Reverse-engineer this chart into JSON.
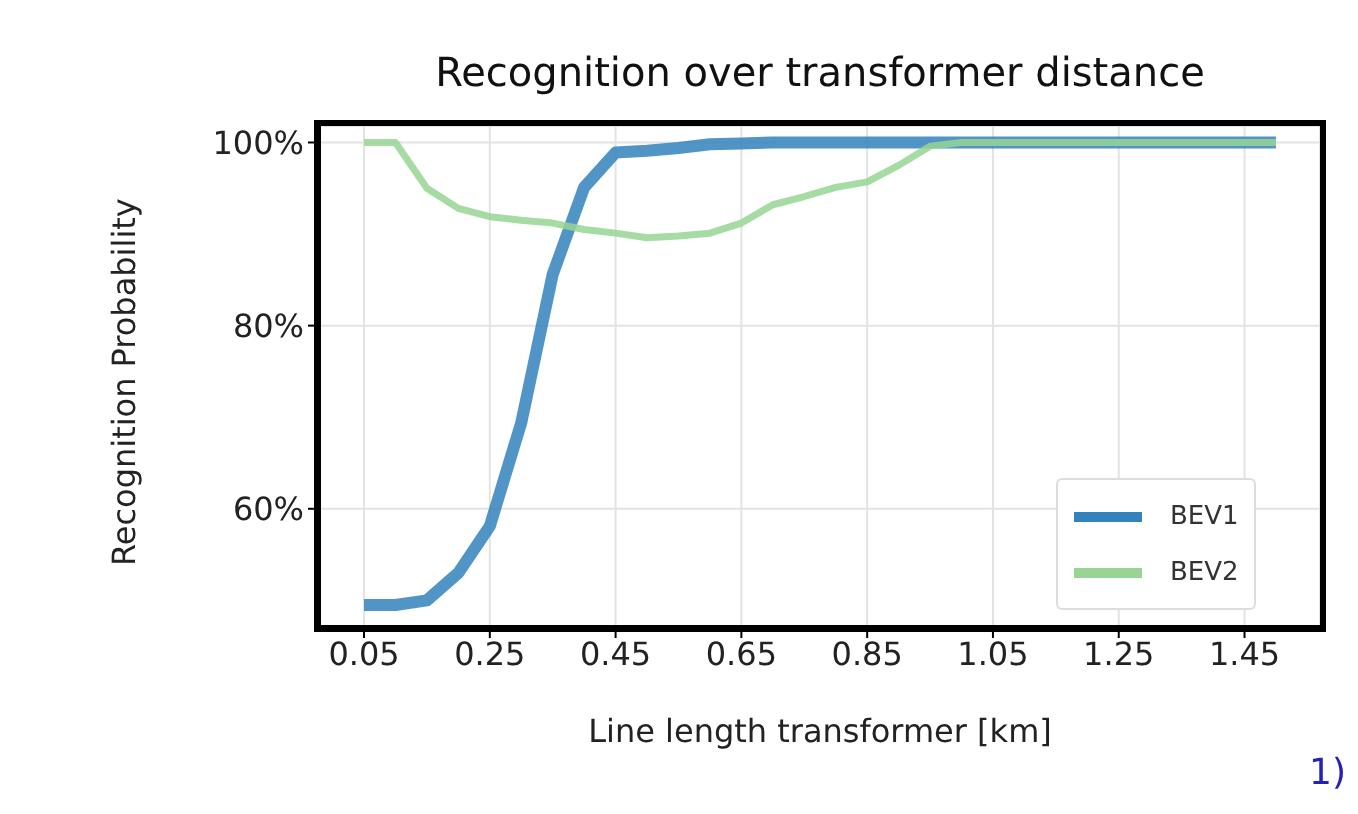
{
  "chart_data": {
    "type": "line",
    "title": "Recognition over transformer distance",
    "xlabel": "Line length transformer [km]",
    "ylabel": "Recognition Probability",
    "x": [
      0.05,
      0.1,
      0.15,
      0.2,
      0.25,
      0.3,
      0.35,
      0.4,
      0.45,
      0.5,
      0.55,
      0.6,
      0.65,
      0.7,
      0.75,
      0.8,
      0.85,
      0.9,
      0.95,
      1.0,
      1.05,
      1.1,
      1.15,
      1.2,
      1.25,
      1.3,
      1.35,
      1.4,
      1.45,
      1.5
    ],
    "series": [
      {
        "name": "BEV1",
        "color": "#3282bd",
        "values": [
          49.5,
          49.5,
          50.0,
          53.0,
          58.1,
          69.4,
          85.6,
          95.1,
          98.9,
          99.1,
          99.4,
          99.8,
          99.9,
          100,
          100,
          100,
          100,
          100,
          100,
          100,
          100,
          100,
          100,
          100,
          100,
          100,
          100,
          100,
          100,
          100
        ]
      },
      {
        "name": "BEV2",
        "color": "#98d594",
        "values": [
          100,
          100,
          95.0,
          92.8,
          91.9,
          91.5,
          91.2,
          90.5,
          90.1,
          89.6,
          89.8,
          90.1,
          91.2,
          93.2,
          94.1,
          95.1,
          95.7,
          97.5,
          99.6,
          100,
          100,
          100,
          100,
          100,
          100,
          100,
          100,
          100,
          100,
          100
        ]
      }
    ],
    "xlim": [
      -0.02,
      1.57
    ],
    "xticks": [
      0.05,
      0.25,
      0.45,
      0.65,
      0.85,
      1.05,
      1.25,
      1.45
    ],
    "ylim": [
      47.2,
      101.8
    ],
    "yticks": [
      {
        "value": 60,
        "label": "60%"
      },
      {
        "value": 80,
        "label": "80%"
      },
      {
        "value": 100,
        "label": "100%"
      }
    ],
    "grid": true,
    "legend": "bottom right",
    "annotations": [
      "1)"
    ]
  }
}
